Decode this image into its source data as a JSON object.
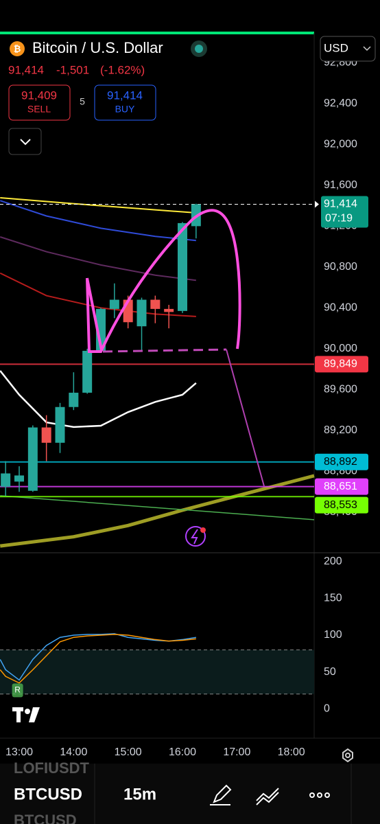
{
  "header": {
    "title": "Bitcoin / U.S. Dollar",
    "price": "91,414",
    "change": "-1,501",
    "change_pct": "(-1.62%)",
    "sell_price": "91,409",
    "sell_label": "SELL",
    "spread": "5",
    "buy_price": "91,414",
    "buy_label": "BUY",
    "currency": "USD"
  },
  "chart_data": [
    {
      "type": "candlestick",
      "xlim": [
        12.647,
        18.42
      ],
      "ylim": [
        88037,
        93091
      ],
      "xticks": [
        {
          "value": 13,
          "label": "13:00"
        },
        {
          "value": 14,
          "label": "14:00"
        },
        {
          "value": 15,
          "label": "15:00"
        },
        {
          "value": 16,
          "label": "16:00"
        },
        {
          "value": 17,
          "label": "17:00"
        },
        {
          "value": 18,
          "label": "18:00"
        }
      ],
      "yticks": [
        {
          "value": 88400,
          "label": "88,400"
        },
        {
          "value": 88800,
          "label": "88,800"
        },
        {
          "value": 89200,
          "label": "89,200"
        },
        {
          "value": 89600,
          "label": "89,600"
        },
        {
          "value": 90000,
          "label": "90,000"
        },
        {
          "value": 90400,
          "label": "90,400"
        },
        {
          "value": 90800,
          "label": "90,800"
        },
        {
          "value": 91200,
          "label": "91,200"
        },
        {
          "value": 91600,
          "label": "91,600"
        },
        {
          "value": 92000,
          "label": "92,000"
        },
        {
          "value": 92400,
          "label": "92,400"
        },
        {
          "value": 92800,
          "label": "92,800"
        }
      ],
      "x": [
        12.75,
        13,
        13.25,
        13.5,
        13.75,
        14,
        14.25,
        14.5,
        14.75,
        15,
        15.25,
        15.5,
        15.75,
        16,
        16.25
      ],
      "open": [
        88650,
        88700,
        88610,
        89230,
        89080,
        89430,
        89570,
        89980,
        90390,
        90480,
        90220,
        90480,
        90390,
        90370,
        91200
      ],
      "high": [
        88900,
        88850,
        89250,
        89350,
        89470,
        89770,
        90000,
        90400,
        90640,
        90520,
        90500,
        90520,
        90430,
        91240,
        91420
      ],
      "low": [
        88560,
        88600,
        88600,
        88900,
        88980,
        89400,
        89560,
        89970,
        90300,
        90200,
        89990,
        90250,
        90200,
        90350,
        91080
      ],
      "close": [
        88780,
        88760,
        89230,
        89080,
        89430,
        89570,
        89980,
        90390,
        90480,
        90260,
        90480,
        90390,
        90360,
        91230,
        91414
      ],
      "up_color": "#26a69a",
      "down_color": "#ef5350",
      "series": [
        {
          "color": "#ffeb3b",
          "x": [
            12.65,
            14,
            15,
            16,
            16.25
          ],
          "values": [
            91478,
            91420,
            91380,
            91340,
            91330
          ]
        },
        {
          "color": "#2f4bd8",
          "x": [
            12.65,
            13.5,
            14.5,
            15.5,
            16.25
          ],
          "values": [
            91450,
            91300,
            91180,
            91100,
            91060
          ]
        },
        {
          "color": "#5e2a5e",
          "x": [
            12.65,
            13.5,
            14.5,
            15.5,
            16.25
          ],
          "values": [
            91095,
            90950,
            90820,
            90720,
            90670
          ]
        },
        {
          "color": "#b71c1c",
          "x": [
            12.65,
            13.5,
            14.5,
            15.5,
            16.25
          ],
          "values": [
            90740,
            90520,
            90400,
            90340,
            90316
          ]
        },
        {
          "color": "#9e9d24",
          "x": [
            12.65,
            14,
            15,
            16,
            17,
            18.42
          ],
          "values": [
            88070,
            88160,
            88270,
            88420,
            88560,
            88757
          ]
        },
        {
          "color": "#4caf50",
          "x": [
            12.65,
            18.42
          ],
          "values": [
            88562,
            88327
          ]
        },
        {
          "color": "#ffffff",
          "x": [
            12.65,
            13,
            13.5,
            14,
            14.5,
            15,
            15.5,
            16,
            16.25
          ],
          "values": [
            89785,
            89550,
            89280,
            89234,
            89247,
            89380,
            89480,
            89550,
            89665
          ]
        }
      ],
      "levels": [
        {
          "value": 89849,
          "label": "89,849",
          "color": "#f23645",
          "text_color": "#ffffff"
        },
        {
          "value": 88892,
          "label": "88,892",
          "color": "#00bcd4",
          "text_color": "#000000"
        },
        {
          "value": 88651,
          "label": "88,651",
          "color": "#e040fb",
          "text_color": "#ffffff"
        },
        {
          "value": 88553,
          "label": "88,553",
          "color": "#76ff03",
          "text_color": "#000000"
        }
      ],
      "last_price": {
        "value": 91414,
        "label": "91,414",
        "countdown": "07:19",
        "color": "#089981"
      }
    },
    {
      "type": "line",
      "xlim": [
        12.647,
        18.42
      ],
      "ylim": [
        -40,
        212
      ],
      "yticks": [
        0,
        50,
        100,
        150,
        200
      ],
      "bands": [
        20,
        80
      ],
      "x": [
        12.65,
        12.75,
        13,
        13.25,
        13.5,
        13.75,
        14,
        14.25,
        14.5,
        14.75,
        15,
        15.25,
        15.5,
        15.75,
        16,
        16.25
      ],
      "series": [
        {
          "color": "#42a5f5",
          "values": [
            67,
            53,
            39,
            67,
            86,
            97,
            100,
            101,
            101,
            102,
            97,
            95,
            93,
            92,
            94,
            97
          ]
        },
        {
          "color": "#ff9800",
          "values": [
            53,
            44,
            35,
            53,
            72,
            91,
            97,
            99,
            100,
            101,
            100,
            97,
            94,
            92,
            93,
            95
          ]
        }
      ],
      "marker": {
        "x": 12.97,
        "value": 25,
        "label": "R"
      }
    }
  ],
  "toolbar": {
    "symbols": [
      "LOFIUSDT",
      "BTCUSD",
      "BTCUSD"
    ],
    "interval": "15m"
  }
}
